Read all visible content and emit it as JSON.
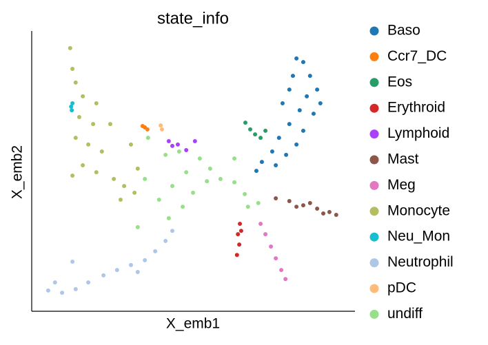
{
  "chart_data": {
    "type": "scatter",
    "title": "state_info",
    "x_label": "X_emb1",
    "y_label": "X_emb2",
    "xlim": [
      0,
      100
    ],
    "ylim": [
      0,
      100
    ],
    "grid": false,
    "legend": "right",
    "series": [
      {
        "name": "Baso",
        "color": "#1f77b4",
        "x": [
          81.9,
          84.0,
          80.8,
          86.1,
          79.7,
          85.1,
          88.3,
          77.6,
          82.9,
          87.2,
          79.7,
          84.0,
          76.5,
          81.9,
          74.4,
          78.7,
          71.2,
          75.5,
          69.5,
          89.3
        ],
        "y": [
          90.2,
          88.9,
          84.0,
          84.0,
          79.1,
          76.7,
          79.1,
          74.2,
          71.7,
          70.5,
          66.8,
          64.4,
          61.9,
          59.5,
          57.0,
          55.8,
          53.3,
          52.1,
          50.1,
          74.2
        ]
      },
      {
        "name": "Ccr7_DC",
        "color": "#ff7f0e",
        "x": [
          35.0,
          34.3,
          35.8
        ],
        "y": [
          65.6,
          66.1,
          64.9
        ]
      },
      {
        "name": "Eos",
        "color": "#279e68",
        "x": [
          66.1,
          67.6,
          69.1,
          70.8,
          72.3
        ],
        "y": [
          67.3,
          64.9,
          63.1,
          61.9,
          64.4
        ]
      },
      {
        "name": "Erythroid",
        "color": "#d62728",
        "x": [
          64.4,
          63.8,
          64.2,
          63.5,
          64.8
        ],
        "y": [
          31.2,
          27.5,
          23.8,
          20.1,
          28.7
        ]
      },
      {
        "name": "Lymphoid",
        "color": "#aa40fc",
        "x": [
          42.4,
          43.5,
          45.2,
          50.5,
          47.8
        ],
        "y": [
          60.7,
          59.0,
          59.5,
          60.7,
          57.5
        ]
      },
      {
        "name": "Mast",
        "color": "#8c564b",
        "x": [
          75.5,
          79.7,
          84.0,
          88.3,
          92.1,
          94.2,
          86.1,
          81.9,
          90.2
        ],
        "y": [
          40.3,
          39.3,
          37.8,
          36.6,
          35.4,
          34.4,
          38.6,
          37.3,
          34.9
        ]
      },
      {
        "name": "Meg",
        "color": "#e377c2",
        "x": [
          70.8,
          72.3,
          74.0,
          75.5,
          77.2,
          78.5
        ],
        "y": [
          31.2,
          27.5,
          23.1,
          18.9,
          14.7,
          11.5
        ]
      },
      {
        "name": "Monocyte",
        "color": "#b5bd61",
        "x": [
          11.9,
          12.6,
          13.6,
          15.8,
          20.0,
          14.7,
          19.0,
          24.3,
          13.6,
          17.5,
          21.7,
          15.8,
          12.6,
          20.0,
          25.4,
          28.6,
          31.8,
          27.5,
          32.8,
          30.7
        ],
        "y": [
          93.9,
          86.5,
          81.6,
          76.7,
          74.2,
          69.3,
          66.8,
          66.8,
          61.9,
          59.5,
          57.0,
          52.1,
          48.4,
          49.6,
          47.2,
          44.7,
          42.3,
          39.8,
          50.9,
          59.5
        ]
      },
      {
        "name": "Neu_Mon",
        "color": "#17becf",
        "x": [
          12.2,
          12.4,
          12.6
        ],
        "y": [
          73.0,
          71.7,
          74.2
        ]
      },
      {
        "name": "Neutrophil",
        "color": "#aec7e8",
        "x": [
          5.1,
          9.4,
          13.6,
          17.5,
          22.2,
          26.4,
          30.7,
          35.0,
          38.2,
          41.4,
          43.5,
          7.2,
          12.6,
          32.8
        ],
        "y": [
          7.4,
          6.6,
          7.9,
          10.3,
          12.8,
          14.7,
          16.5,
          18.2,
          21.4,
          25.1,
          28.7,
          10.3,
          17.7,
          14.0
        ]
      },
      {
        "name": "pDC",
        "color": "#ffbb78",
        "x": [
          39.9,
          40.3
        ],
        "y": [
          66.3,
          64.9
        ]
      },
      {
        "name": "undiff",
        "color": "#98df8a",
        "x": [
          36.0,
          41.4,
          45.6,
          52.0,
          55.2,
          47.8,
          43.5,
          39.4,
          49.9,
          54.2,
          58.4,
          62.7,
          65.9,
          66.9,
          70.1,
          46.7,
          42.4,
          35.0,
          62.7,
          32.8
        ],
        "y": [
          61.9,
          55.8,
          57.0,
          54.5,
          50.9,
          49.6,
          44.7,
          39.8,
          42.3,
          46.4,
          47.2,
          46.0,
          41.8,
          37.3,
          38.6,
          37.3,
          33.2,
          47.2,
          54.5,
          30.0
        ]
      }
    ]
  }
}
